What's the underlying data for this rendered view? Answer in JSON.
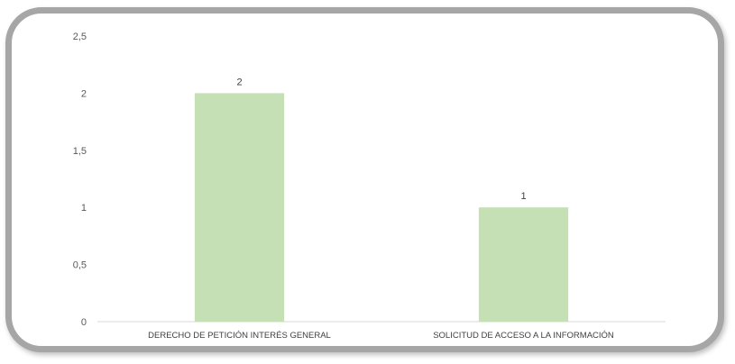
{
  "chart_data": {
    "type": "bar",
    "categories": [
      "DERECHO DE PETICIÓN INTERÉS GENERAL",
      "SOLICITUD DE ACCESO A LA INFORMACIÓN"
    ],
    "values": [
      2,
      1
    ],
    "data_labels": [
      "2",
      "1"
    ],
    "y_ticks": [
      "0",
      "0,5",
      "1",
      "1,5",
      "2",
      "2,5"
    ],
    "y_tick_values": [
      0,
      0.5,
      1,
      1.5,
      2,
      2.5
    ],
    "ylim": [
      0,
      2.5
    ],
    "title": "",
    "xlabel": "",
    "ylabel": "",
    "grid": false,
    "legend": "none",
    "bar_color": "#c5e0b4",
    "axis_color": "#d9d9d9",
    "frame_color": "#a6a6a6"
  }
}
